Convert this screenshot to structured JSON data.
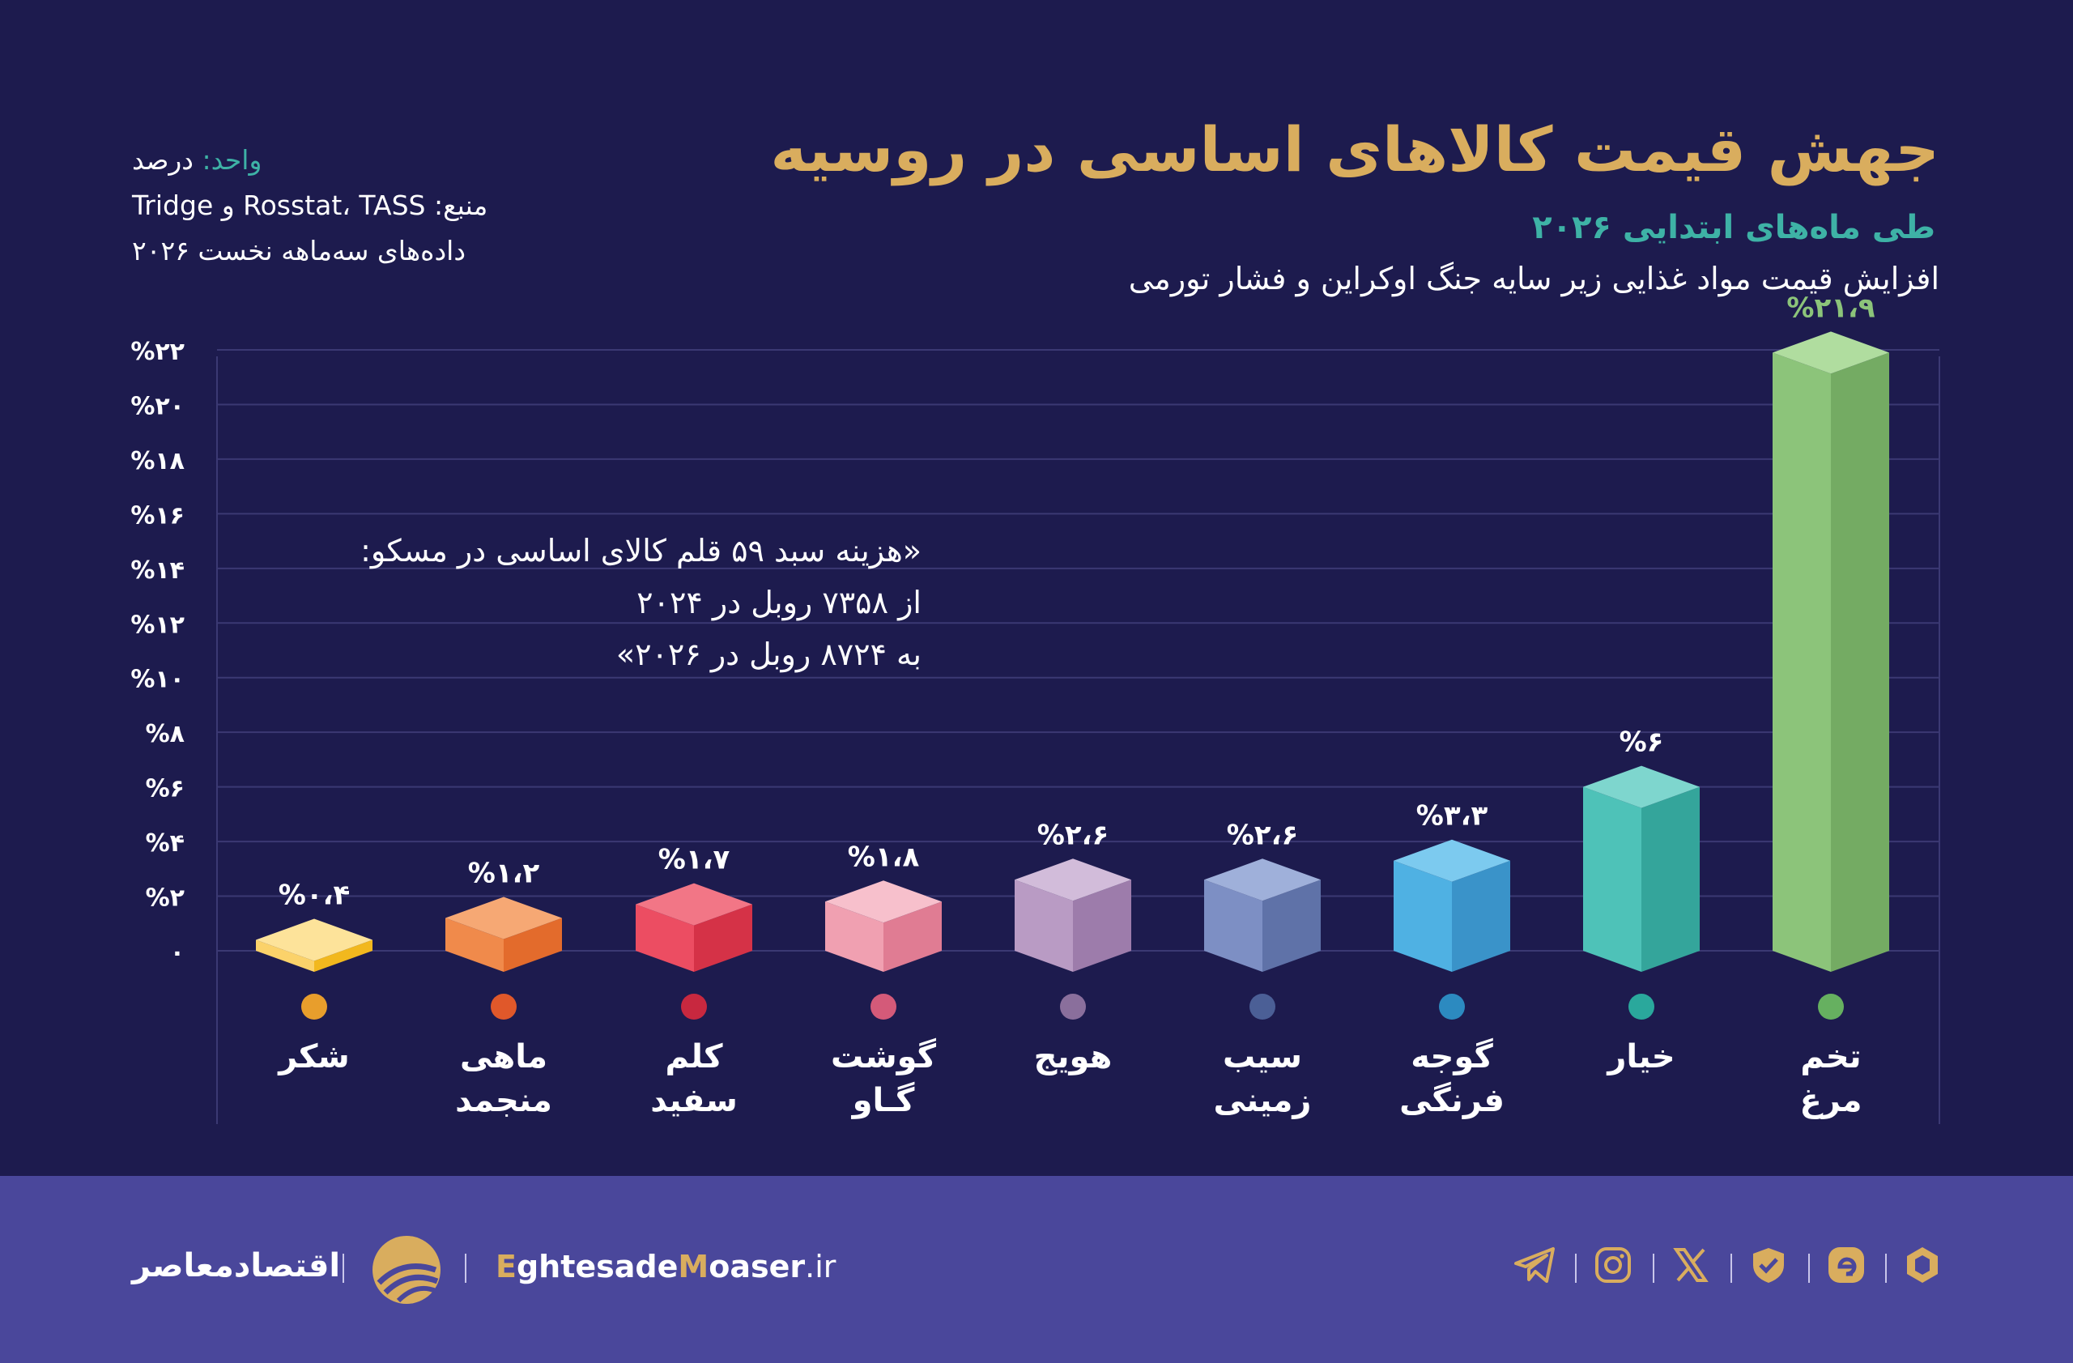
{
  "header": {
    "title": "جهش قیمت کالاهای اساسی در روسیه",
    "subtitle": "طی ماه‌های ابتدایی ۲۰۲۶",
    "description": "افزایش قیمت مواد غذایی زیر سایه جنگ اوکراین و فشار تورمی"
  },
  "meta": {
    "unit_label": "واحد:",
    "unit_value": " درصد",
    "source": "منبع: Rosstat، TASS و Tridge",
    "period": "داده‌های سه‌ماهه نخست ۲۰۲۶"
  },
  "note": {
    "lines": [
      "«هزینه سبد ۵۹ قلم کالای اساسی در مسکو:",
      "از ۷۳۵۸ روبل در ۲۰۲۴",
      "به ۸۷۲۴ روبل در ۲۰۲۶»"
    ]
  },
  "chart_data": {
    "type": "bar",
    "ylim": [
      0,
      22
    ],
    "y_ticks": [
      {
        "value": 0,
        "label": "۰"
      },
      {
        "value": 2,
        "label": "%۲"
      },
      {
        "value": 4,
        "label": "%۴"
      },
      {
        "value": 6,
        "label": "%۶"
      },
      {
        "value": 8,
        "label": "%۸"
      },
      {
        "value": 10,
        "label": "%۱۰"
      },
      {
        "value": 12,
        "label": "%۱۲"
      },
      {
        "value": 14,
        "label": "%۱۴"
      },
      {
        "value": 16,
        "label": "%۱۶"
      },
      {
        "value": 18,
        "label": "%۱۸"
      },
      {
        "value": 20,
        "label": "%۲۰"
      },
      {
        "value": 22,
        "label": "%۲۲"
      }
    ],
    "grid": true,
    "categories": [
      [
        "شکر"
      ],
      [
        "ماهی",
        "منجمد"
      ],
      [
        "کلم",
        "سفید"
      ],
      [
        "گوشت",
        "گـاو"
      ],
      [
        "هویج"
      ],
      [
        "سیب",
        "زمینی"
      ],
      [
        "گوجه",
        "فرنگی"
      ],
      [
        "خیار"
      ],
      [
        "تخم",
        "مرغ"
      ]
    ],
    "values": [
      0.4,
      1.2,
      1.7,
      1.8,
      2.6,
      2.6,
      3.3,
      6,
      21.9
    ],
    "data_labels": [
      "%۰،۴",
      "%۱،۲",
      "%۱،۷",
      "%۱،۸",
      "%۲،۶",
      "%۲،۶",
      "%۳،۳",
      "%۶",
      "%۲۱،۹"
    ],
    "colors": [
      {
        "front": "#fbd26a",
        "side": "#f2b81e",
        "top": "#fde39a",
        "dot": "#e89e2c"
      },
      {
        "front": "#f08a4b",
        "side": "#e36b2c",
        "top": "#f6a874",
        "dot": "#e0582a"
      },
      {
        "front": "#ec4d62",
        "side": "#d53247",
        "top": "#f27686",
        "dot": "#c8283f"
      },
      {
        "front": "#f0a0b1",
        "side": "#e07c93",
        "top": "#f7c0cc",
        "dot": "#d45a79"
      },
      {
        "front": "#b99bc4",
        "side": "#9d7cab",
        "top": "#d2bcda",
        "dot": "#8a6f9c"
      },
      {
        "front": "#7d8fc4",
        "side": "#5f72a8",
        "top": "#9fb0da",
        "dot": "#4b5f96"
      },
      {
        "front": "#4fb1e3",
        "side": "#3a93c9",
        "top": "#7ccaef",
        "dot": "#2c8ac0"
      },
      {
        "front": "#4ec2b8",
        "side": "#34a59b",
        "top": "#7ed6ce",
        "dot": "#2aa89c"
      },
      {
        "front": "#8cc47a",
        "side": "#74ab63",
        "top": "#b0dd9f",
        "dot": "#66b060"
      }
    ],
    "label_colors": {
      "default": "#ffffff",
      "highlight": "#8cc47a"
    }
  },
  "footer": {
    "brand_name": "اقتصادمعاصر",
    "site_e": "E",
    "site_mid": "ghtesade",
    "site_m": "M",
    "site_end": "oaser",
    "site_tld": ".ir",
    "social_icons": [
      "hexagon-icon",
      "e-logo-icon",
      "shield-check-icon",
      "x-icon",
      "instagram-icon",
      "telegram-icon"
    ]
  }
}
